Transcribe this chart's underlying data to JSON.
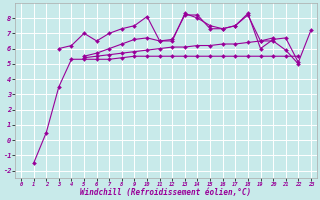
{
  "xlabel": "Windchill (Refroidissement éolien,°C)",
  "background_color": "#c8eaea",
  "grid_color": "#ffffff",
  "line_color": "#990099",
  "xlim": [
    -0.5,
    23.5
  ],
  "ylim": [
    -2.5,
    9.0
  ],
  "yticks": [
    -2,
    -1,
    0,
    1,
    2,
    3,
    4,
    5,
    6,
    7,
    8
  ],
  "xticks": [
    0,
    1,
    2,
    3,
    4,
    5,
    6,
    7,
    8,
    9,
    10,
    11,
    12,
    13,
    14,
    15,
    16,
    17,
    18,
    19,
    20,
    21,
    22,
    23
  ],
  "series": [
    [
      1,
      -1.5,
      2,
      0.5,
      3,
      3.5,
      4,
      5.3,
      5,
      5.3,
      6,
      5.3,
      7,
      5.3,
      8,
      5.4,
      9,
      5.5,
      10,
      5.5,
      11,
      5.5,
      12,
      5.5,
      13,
      5.5,
      14,
      5.5,
      15,
      5.5,
      16,
      5.5,
      17,
      5.5,
      18,
      5.5,
      19,
      5.5,
      20,
      5.5,
      21,
      5.5,
      22,
      5.5
    ],
    [
      5,
      5.4,
      6,
      5.5,
      7,
      5.6,
      8,
      5.7,
      9,
      5.8,
      10,
      5.9,
      11,
      6.0,
      12,
      6.1,
      13,
      6.1,
      14,
      6.2,
      15,
      6.2,
      16,
      6.3,
      17,
      6.3,
      18,
      6.4,
      19,
      6.5,
      20,
      6.5,
      21,
      5.9,
      22,
      5.0
    ],
    [
      5,
      5.5,
      6,
      5.7,
      7,
      6.0,
      8,
      6.3,
      9,
      6.6,
      10,
      6.7,
      11,
      6.5,
      12,
      6.6,
      13,
      8.2,
      14,
      8.2,
      15,
      7.3,
      16,
      7.3,
      17,
      7.5,
      18,
      8.3,
      19,
      6.0,
      20,
      6.6,
      21,
      6.7,
      22,
      5.1,
      23,
      7.2
    ],
    [
      3,
      6.0,
      4,
      6.2,
      5,
      7.0,
      6,
      6.5,
      7,
      7.0,
      8,
      7.3,
      9,
      7.5,
      10,
      8.1,
      11,
      6.5,
      12,
      6.5,
      13,
      8.3,
      14,
      8.0,
      15,
      7.5,
      16,
      7.3,
      17,
      7.5,
      18,
      8.2,
      19,
      6.5,
      20,
      6.7
    ]
  ],
  "marker": "D",
  "markersize": 2.0,
  "linewidth": 0.8
}
